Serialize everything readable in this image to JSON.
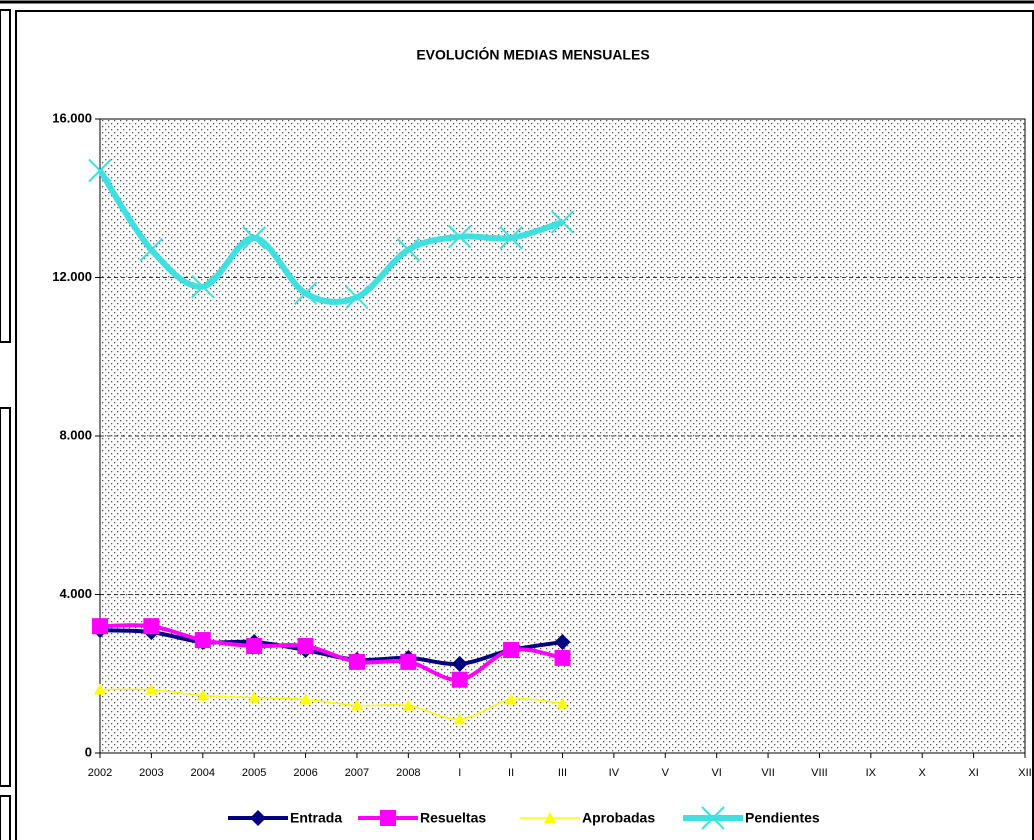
{
  "chart_data": {
    "type": "line",
    "title": "EVOLUCIÓN MEDIAS MENSUALES",
    "categories": [
      "2002",
      "2003",
      "2004",
      "2005",
      "2006",
      "2007",
      "2008",
      "I",
      "II",
      "III",
      "IV",
      "V",
      "VI",
      "VII",
      "VIII",
      "IX",
      "X",
      "XI",
      "XII"
    ],
    "series": [
      {
        "name": "Entrada",
        "color": "#000080",
        "marker": "diamond",
        "values": [
          3100,
          3050,
          2800,
          2800,
          2600,
          2350,
          2400,
          2250,
          2600,
          2800,
          null,
          null,
          null,
          null,
          null,
          null,
          null,
          null,
          null
        ]
      },
      {
        "name": "Resueltas",
        "color": "#FF00FF",
        "marker": "square",
        "values": [
          3200,
          3200,
          2850,
          2700,
          2700,
          2300,
          2300,
          1850,
          2600,
          2400,
          null,
          null,
          null,
          null,
          null,
          null,
          null,
          null,
          null
        ]
      },
      {
        "name": "Aprobadas",
        "color": "#FFFF00",
        "marker": "triangle",
        "values": [
          1600,
          1600,
          1450,
          1400,
          1350,
          1200,
          1200,
          850,
          1350,
          1250,
          null,
          null,
          null,
          null,
          null,
          null,
          null,
          null,
          null
        ]
      },
      {
        "name": "Pendientes",
        "color": "#40E0E0",
        "marker": "x",
        "values": [
          14700,
          12700,
          11770,
          13000,
          11600,
          11500,
          12700,
          13030,
          13000,
          13400,
          null,
          null,
          null,
          null,
          null,
          null,
          null,
          null,
          null
        ]
      }
    ],
    "ylim": [
      0,
      16000
    ],
    "yticks": [
      0,
      {
        "value": 4000,
        "label": "4.000"
      },
      {
        "value": 8000,
        "label": "8.000"
      },
      {
        "value": 12000,
        "label": "12.000"
      },
      {
        "value": 16000,
        "label": "16.000"
      }
    ],
    "grid": true,
    "smooth": true,
    "legend": "bottom"
  }
}
